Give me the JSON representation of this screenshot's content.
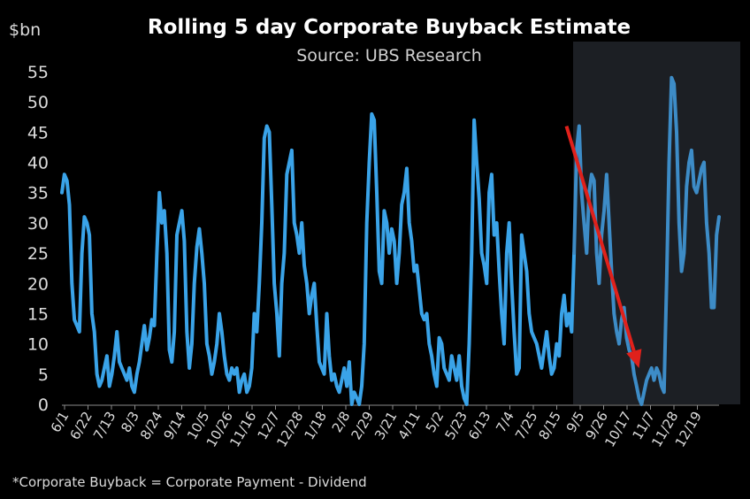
{
  "chart_data": {
    "type": "line",
    "title": "Rolling 5 day Corporate Buyback Estimate",
    "subtitle": "Source: UBS Research",
    "ylabel": "$bn",
    "ylim": [
      0,
      55
    ],
    "yticks": [
      0,
      5,
      10,
      15,
      20,
      25,
      30,
      35,
      40,
      45,
      50,
      55
    ],
    "xticks": [
      "6/1",
      "6/22",
      "7/13",
      "8/3",
      "8/24",
      "9/14",
      "10/5",
      "10/26",
      "11/16",
      "12/7",
      "12/28",
      "1/18",
      "2/8",
      "2/29",
      "3/21",
      "4/11",
      "5/2",
      "5/23",
      "6/13",
      "7/4",
      "7/25",
      "8/15",
      "9/5",
      "9/26",
      "10/17",
      "11/7",
      "11/28",
      "12/19"
    ],
    "grid": false,
    "footnote": "*Corporate Buyback = Corporate Payment - Dividend",
    "highlight": {
      "from": "9/5",
      "to": "end",
      "description": "shaded region"
    },
    "annotation": {
      "type": "arrow",
      "color": "#e0211b",
      "from": {
        "x": "8/15",
        "y": 46
      },
      "to": {
        "x": "11/7",
        "y": 6
      }
    },
    "colors": {
      "line": "#3aa3e8",
      "line_shaded": "#3d8cc7",
      "shade": "#1c1f24",
      "arrow": "#e0211b"
    },
    "series": [
      {
        "values": [
          35,
          38,
          37,
          33,
          20,
          14,
          13,
          12,
          25,
          31,
          30,
          28,
          15,
          12,
          5,
          3,
          4,
          6,
          8,
          3,
          5,
          8,
          12,
          7,
          6,
          5,
          4,
          6,
          3,
          2,
          5,
          7,
          10,
          13,
          9,
          11,
          14,
          13,
          25,
          35,
          30,
          32,
          25,
          9,
          7,
          12,
          28,
          30,
          32,
          27,
          12,
          6,
          10,
          20,
          26,
          29,
          25,
          20,
          10,
          8,
          5,
          7,
          10,
          15,
          12,
          8,
          5,
          4,
          6,
          5,
          6,
          2,
          4,
          5,
          2,
          3,
          6,
          15,
          12,
          20,
          30,
          44,
          46,
          45,
          33,
          20,
          15,
          8,
          20,
          25,
          38,
          40,
          42,
          30,
          28,
          25,
          30,
          23,
          20,
          15,
          18,
          20,
          13,
          7,
          6,
          5,
          15,
          8,
          4,
          5,
          3,
          2,
          4,
          6,
          3,
          7,
          0,
          2,
          1,
          0,
          3,
          10,
          30,
          40,
          48,
          47,
          35,
          22,
          20,
          32,
          30,
          25,
          29,
          27,
          20,
          25,
          33,
          35,
          39,
          30,
          27,
          22,
          23,
          19,
          15,
          14,
          15,
          10,
          8,
          5,
          3,
          11,
          10,
          6,
          5,
          4,
          8,
          6,
          4,
          8,
          3,
          1,
          0,
          10,
          25,
          47,
          40,
          34,
          25,
          23,
          20,
          35,
          38,
          28,
          30,
          22,
          15,
          10,
          25,
          30,
          20,
          12,
          5,
          6,
          28,
          25,
          22,
          15,
          12,
          11,
          10,
          8,
          6,
          9,
          12,
          8,
          5,
          6,
          10,
          8,
          15,
          18,
          13,
          15,
          12,
          25,
          42,
          46,
          35,
          30,
          25,
          35,
          38,
          37,
          25,
          20,
          28,
          32,
          38,
          30,
          22,
          15,
          12,
          10,
          14,
          16,
          11,
          9,
          8,
          5,
          3,
          1,
          0,
          2,
          4,
          5,
          6,
          4,
          6,
          5,
          3,
          2,
          20,
          40,
          54,
          53,
          45,
          30,
          22,
          25,
          36,
          40,
          42,
          36,
          35,
          37,
          39,
          40,
          30,
          25,
          16,
          16,
          28,
          31
        ]
      }
    ]
  }
}
